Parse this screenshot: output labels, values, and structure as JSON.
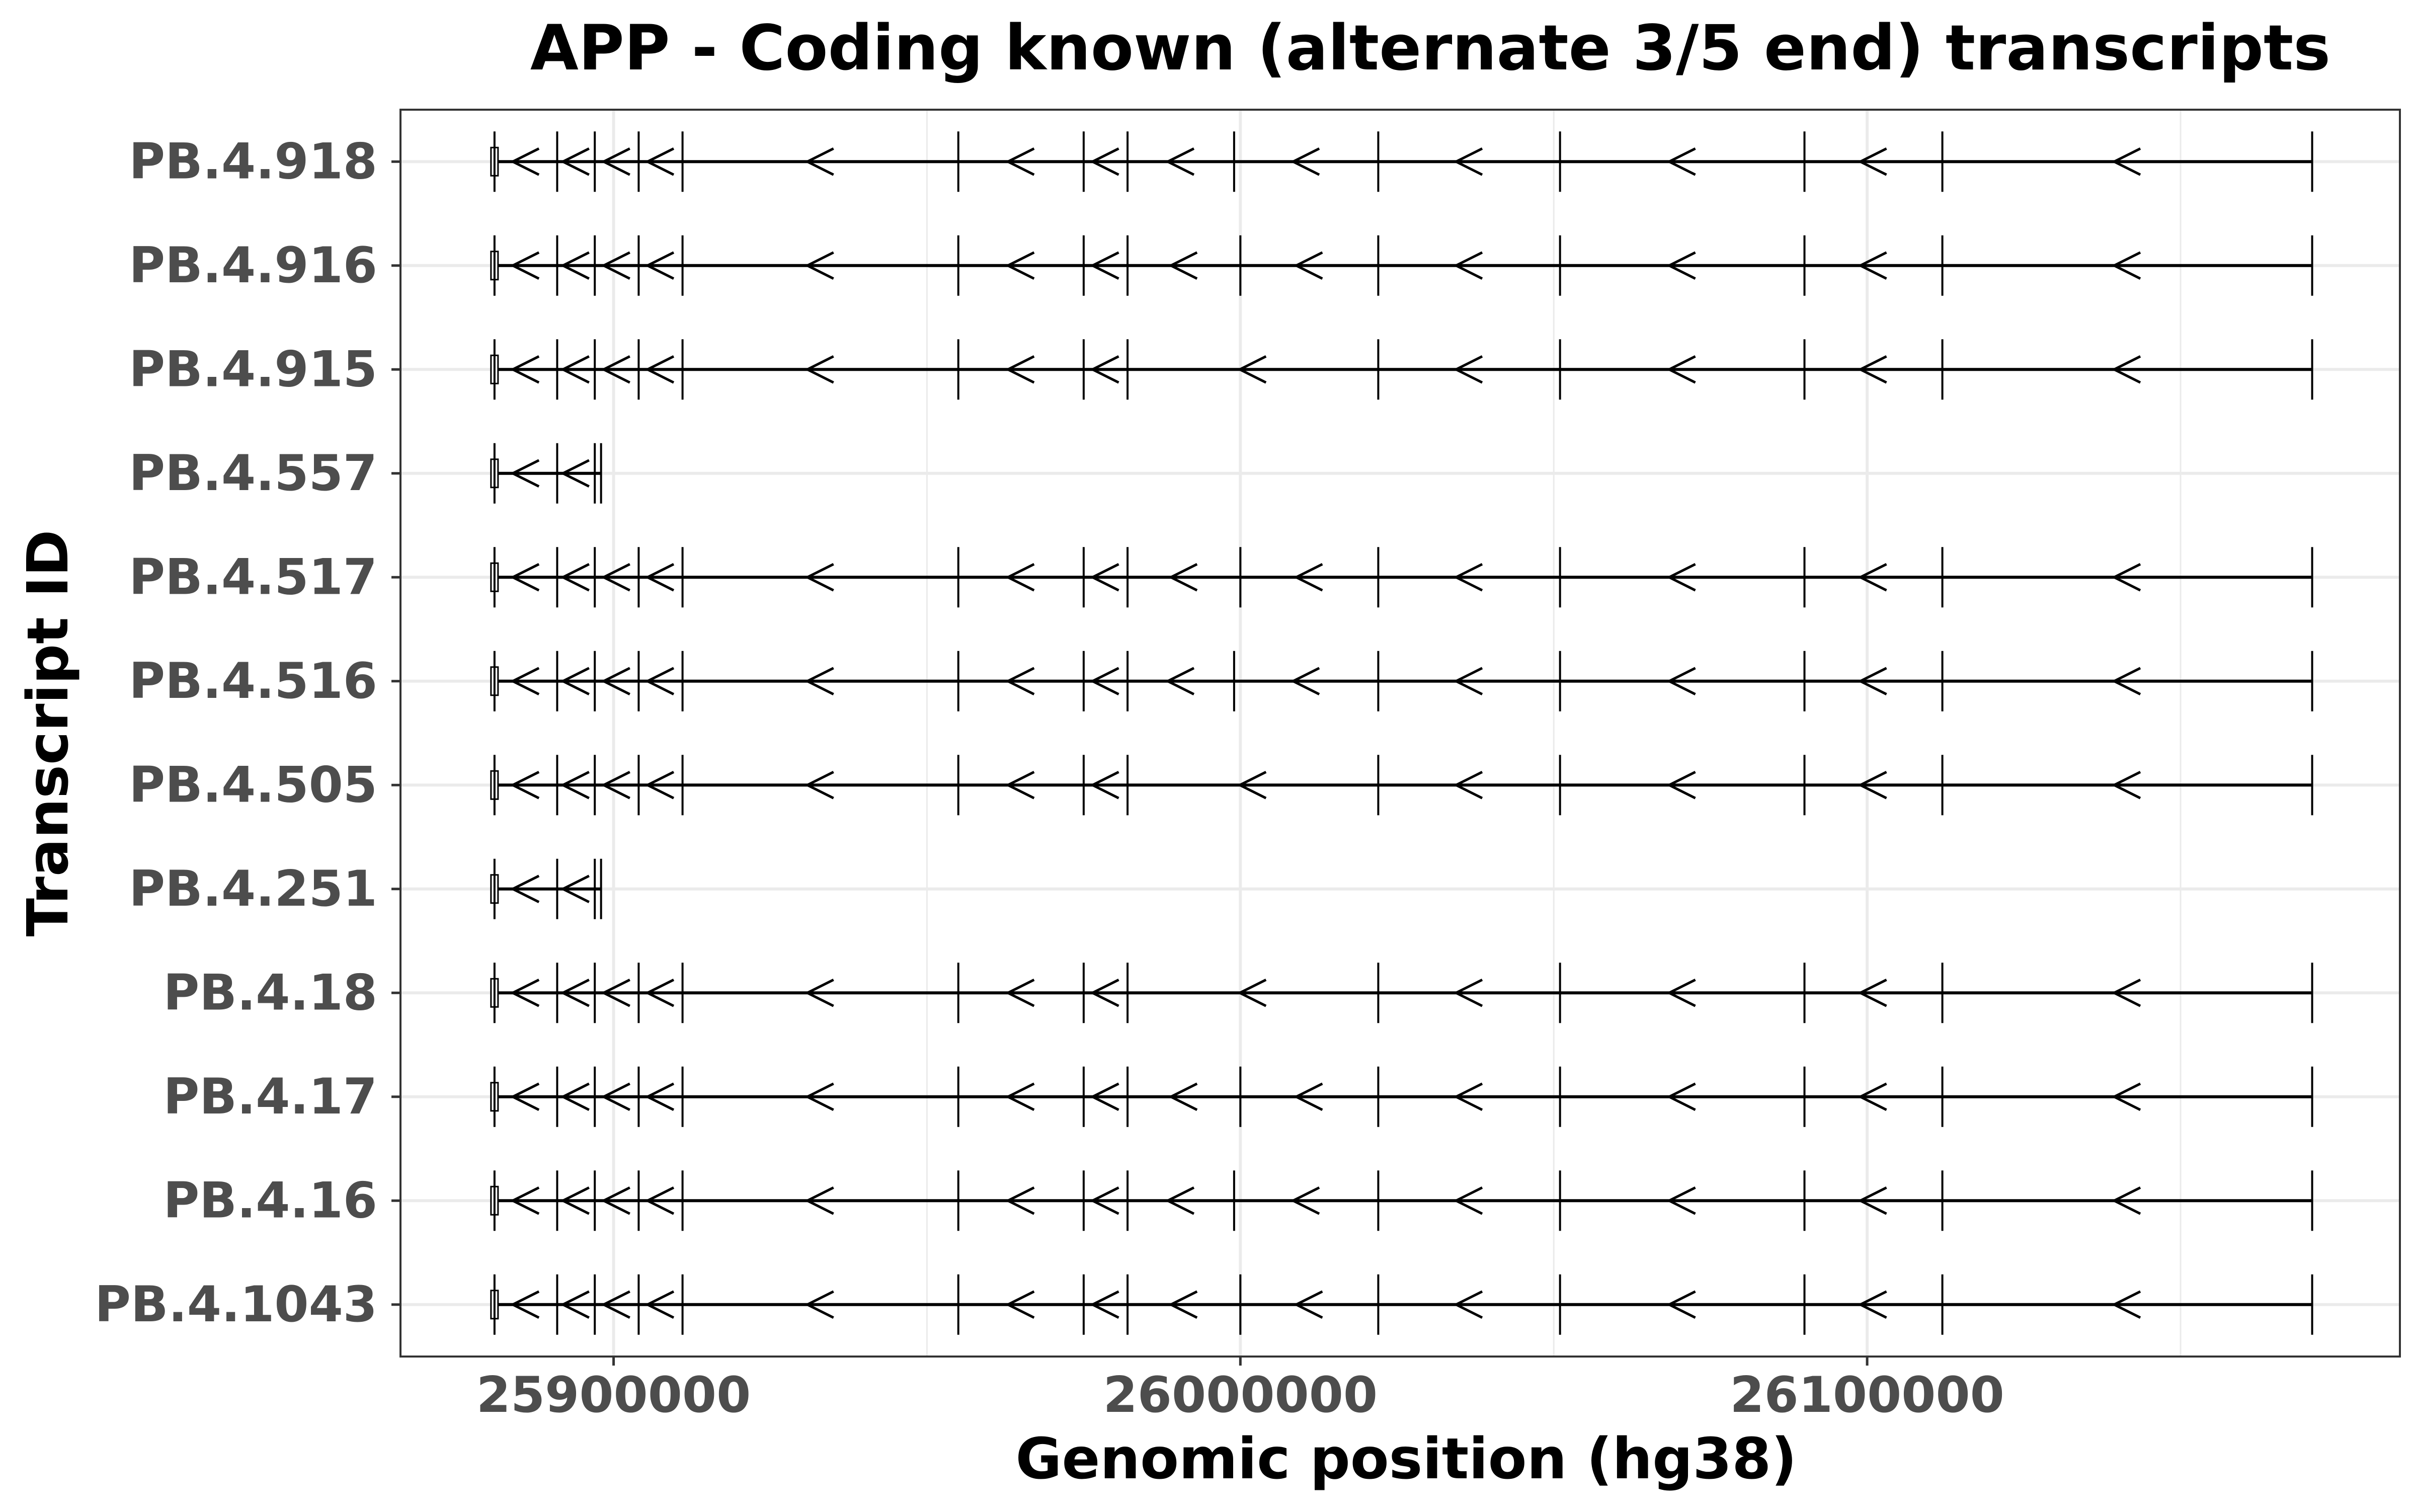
{
  "chart_data": {
    "type": "line",
    "subtype": "transcript-structure",
    "title": "APP - Coding known (alternate 3/5 end) transcripts",
    "xlabel": "Genomic position (hg38)",
    "ylabel": "Transcript ID",
    "xlim": [
      25866000,
      26185000
    ],
    "x_ticks": [
      25900000,
      26000000,
      26100000
    ],
    "x_tick_labels": [
      "25900000",
      "26000000",
      "26100000"
    ],
    "grid": true,
    "strand": "-",
    "colors": {
      "line": "#000000",
      "grid": "#ebebeb",
      "tick_text": "#4d4d4d",
      "border": "#333333"
    },
    "transcripts": [
      {
        "id": "PB.4.918",
        "start": 25881000,
        "end": 26171000,
        "exons": [
          25881000,
          25891000,
          25897000,
          25904000,
          25911000,
          25955000,
          25975000,
          25982000,
          25999000,
          26022000,
          26051000,
          26090000,
          26112000,
          26171000
        ]
      },
      {
        "id": "PB.4.916",
        "start": 25881000,
        "end": 26171000,
        "exons": [
          25881000,
          25891000,
          25897000,
          25904000,
          25911000,
          25955000,
          25975000,
          25982000,
          26000000,
          26022000,
          26051000,
          26090000,
          26112000,
          26171000
        ]
      },
      {
        "id": "PB.4.915",
        "start": 25881000,
        "end": 26171000,
        "exons": [
          25881000,
          25891000,
          25897000,
          25904000,
          25911000,
          25955000,
          25975000,
          25982000,
          26022000,
          26051000,
          26090000,
          26112000,
          26171000
        ]
      },
      {
        "id": "PB.4.557",
        "start": 25881000,
        "end": 25898000,
        "exons": [
          25881000,
          25891000,
          25897000,
          25898000
        ]
      },
      {
        "id": "PB.4.517",
        "start": 25881000,
        "end": 26171000,
        "exons": [
          25881000,
          25891000,
          25897000,
          25904000,
          25911000,
          25955000,
          25975000,
          25982000,
          26000000,
          26022000,
          26051000,
          26090000,
          26112000,
          26171000
        ]
      },
      {
        "id": "PB.4.516",
        "start": 25881000,
        "end": 26171000,
        "exons": [
          25881000,
          25891000,
          25897000,
          25904000,
          25911000,
          25955000,
          25975000,
          25982000,
          25999000,
          26022000,
          26051000,
          26090000,
          26112000,
          26171000
        ]
      },
      {
        "id": "PB.4.505",
        "start": 25881000,
        "end": 26171000,
        "exons": [
          25881000,
          25891000,
          25897000,
          25904000,
          25911000,
          25955000,
          25975000,
          25982000,
          26022000,
          26051000,
          26090000,
          26112000,
          26171000
        ]
      },
      {
        "id": "PB.4.251",
        "start": 25881000,
        "end": 25898000,
        "exons": [
          25881000,
          25891000,
          25897000,
          25898000
        ]
      },
      {
        "id": "PB.4.18",
        "start": 25881000,
        "end": 26171000,
        "exons": [
          25881000,
          25891000,
          25897000,
          25904000,
          25911000,
          25955000,
          25975000,
          25982000,
          26022000,
          26051000,
          26090000,
          26112000,
          26171000
        ]
      },
      {
        "id": "PB.4.17",
        "start": 25881000,
        "end": 26171000,
        "exons": [
          25881000,
          25891000,
          25897000,
          25904000,
          25911000,
          25955000,
          25975000,
          25982000,
          26000000,
          26022000,
          26051000,
          26090000,
          26112000,
          26171000
        ]
      },
      {
        "id": "PB.4.16",
        "start": 25881000,
        "end": 26171000,
        "exons": [
          25881000,
          25891000,
          25897000,
          25904000,
          25911000,
          25955000,
          25975000,
          25982000,
          25999000,
          26022000,
          26051000,
          26090000,
          26112000,
          26171000
        ]
      },
      {
        "id": "PB.4.1043",
        "start": 25881000,
        "end": 26171000,
        "exons": [
          25881000,
          25891000,
          25897000,
          25904000,
          25911000,
          25955000,
          25975000,
          25982000,
          26000000,
          26022000,
          26051000,
          26090000,
          26112000,
          26171000
        ]
      }
    ]
  }
}
